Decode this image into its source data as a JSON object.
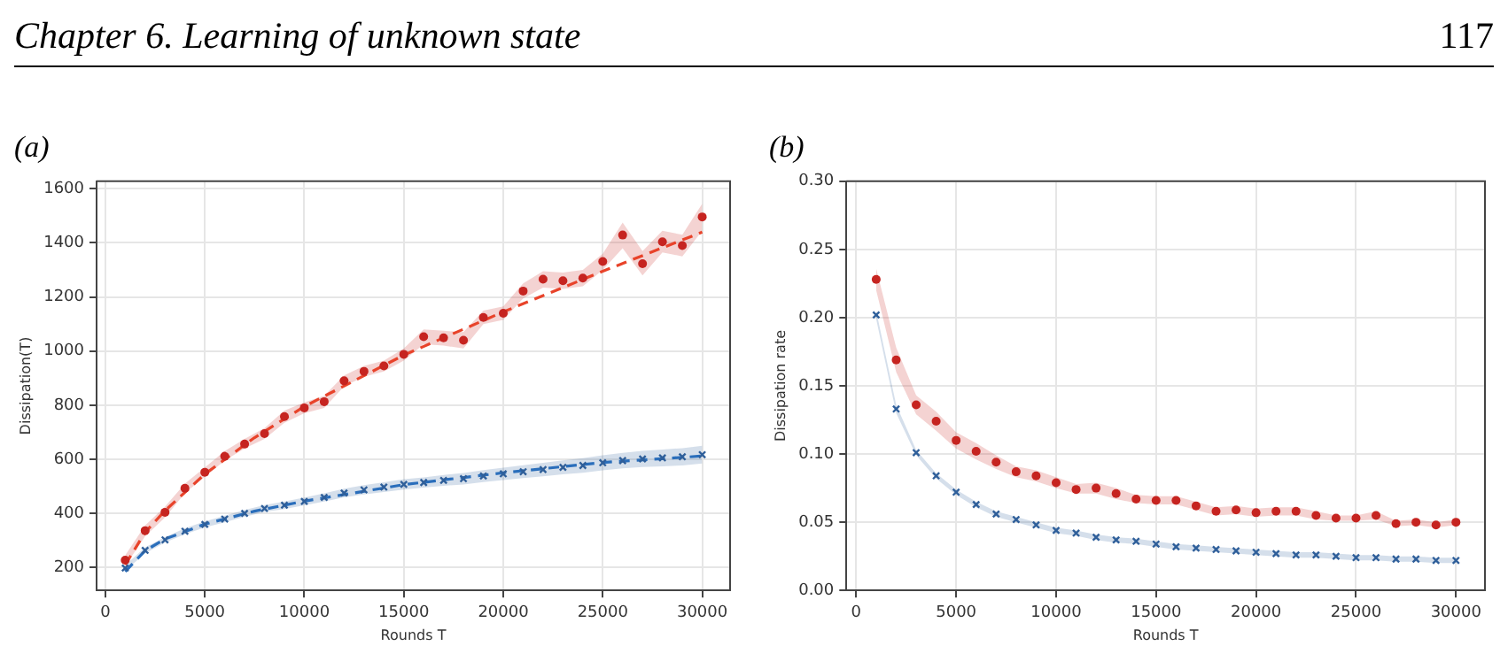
{
  "chart_data": [
    {
      "type": "scatter",
      "title": "(a)",
      "xlabel": "Rounds T",
      "ylabel": "Dissipation(T)",
      "annotations": [
        "Chapter 6. Learning of unknown state",
        "117"
      ],
      "x": [
        1000,
        2000,
        3000,
        4000,
        5000,
        6000,
        7000,
        8000,
        9000,
        10000,
        11000,
        12000,
        13000,
        14000,
        15000,
        16000,
        17000,
        18000,
        19000,
        20000,
        21000,
        22000,
        23000,
        24000,
        25000,
        26000,
        27000,
        28000,
        29000,
        30000
      ],
      "series": [
        {
          "type": "scatter",
          "marker": "circle",
          "color": "#c62420",
          "values": [
            227,
            336,
            404,
            493,
            552,
            611,
            656,
            695,
            758,
            790,
            813,
            890,
            925,
            945,
            988,
            1053,
            1049,
            1040,
            1124,
            1140,
            1222,
            1266,
            1260,
            1270,
            1331,
            1429,
            1323,
            1404,
            1390,
            1496
          ],
          "lower": [
            205,
            315,
            385,
            475,
            535,
            595,
            640,
            675,
            735,
            770,
            790,
            870,
            905,
            925,
            965,
            1025,
            1020,
            1010,
            1100,
            1115,
            1195,
            1235,
            1230,
            1240,
            1300,
            1380,
            1280,
            1365,
            1350,
            1445
          ],
          "upper": [
            245,
            355,
            425,
            510,
            570,
            630,
            675,
            715,
            780,
            810,
            835,
            910,
            945,
            965,
            1010,
            1080,
            1075,
            1070,
            1150,
            1165,
            1250,
            1295,
            1290,
            1300,
            1360,
            1475,
            1370,
            1445,
            1430,
            1545
          ]
        },
        {
          "type": "line",
          "line_style": "dashed",
          "marker": "none",
          "color": "#e8432a",
          "x": [
            1000,
            2000,
            3000,
            5000,
            7500,
            10000,
            15000,
            20000,
            25000,
            30000
          ],
          "values": [
            210,
            330,
            410,
            545,
            680,
            795,
            985,
            1145,
            1295,
            1440
          ]
        },
        {
          "type": "scatter",
          "marker": "cross",
          "color": "#2f5f9a",
          "values": [
            198,
            263,
            302,
            334,
            359,
            379,
            400,
            418,
            430,
            444,
            459,
            475,
            487,
            497,
            507,
            514,
            522,
            528,
            538,
            546,
            554,
            562,
            570,
            577,
            587,
            595,
            601,
            605,
            609,
            617
          ],
          "lower": [
            188,
            252,
            292,
            323,
            348,
            367,
            387,
            405,
            416,
            430,
            444,
            459,
            470,
            479,
            488,
            495,
            502,
            507,
            516,
            523,
            530,
            537,
            544,
            550,
            559,
            566,
            571,
            574,
            577,
            584
          ],
          "upper": [
            208,
            274,
            312,
            345,
            370,
            391,
            413,
            431,
            444,
            458,
            474,
            491,
            504,
            515,
            526,
            533,
            542,
            549,
            560,
            569,
            578,
            587,
            596,
            604,
            615,
            624,
            631,
            636,
            641,
            650
          ]
        },
        {
          "type": "line",
          "line_style": "dashed",
          "marker": "none",
          "color": "#2a6ebb",
          "x": [
            1000,
            2000,
            3000,
            5000,
            7500,
            10000,
            15000,
            20000,
            25000,
            30000
          ],
          "values": [
            185,
            262,
            305,
            360,
            408,
            445,
            506,
            550,
            588,
            612
          ]
        }
      ],
      "xlim": [
        -440,
        31400
      ],
      "xticks": [
        0,
        5000,
        10000,
        15000,
        20000,
        25000,
        30000
      ],
      "ylim": [
        115,
        1628
      ],
      "yticks": [
        200,
        400,
        600,
        800,
        1000,
        1200,
        1400,
        1600
      ],
      "grid": true,
      "legend": false
    },
    {
      "type": "scatter",
      "title": "(b)",
      "xlabel": "Rounds T",
      "ylabel": "Dissipation rate",
      "x": [
        1000,
        2000,
        3000,
        4000,
        5000,
        6000,
        7000,
        8000,
        9000,
        10000,
        11000,
        12000,
        13000,
        14000,
        15000,
        16000,
        17000,
        18000,
        19000,
        20000,
        21000,
        22000,
        23000,
        24000,
        25000,
        26000,
        27000,
        28000,
        29000,
        30000
      ],
      "series": [
        {
          "type": "scatter",
          "marker": "circle",
          "color": "#c62420",
          "values": [
            0.228,
            0.169,
            0.136,
            0.124,
            0.11,
            0.102,
            0.094,
            0.087,
            0.084,
            0.079,
            0.074,
            0.075,
            0.071,
            0.067,
            0.066,
            0.066,
            0.062,
            0.058,
            0.059,
            0.057,
            0.058,
            0.058,
            0.055,
            0.053,
            0.053,
            0.055,
            0.049,
            0.05,
            0.048,
            0.05
          ],
          "lower": [
            0.22,
            0.16,
            0.129,
            0.117,
            0.104,
            0.096,
            0.089,
            0.083,
            0.08,
            0.075,
            0.071,
            0.071,
            0.067,
            0.064,
            0.063,
            0.063,
            0.059,
            0.055,
            0.056,
            0.054,
            0.055,
            0.055,
            0.052,
            0.051,
            0.051,
            0.052,
            0.047,
            0.048,
            0.046,
            0.048
          ],
          "upper": [
            0.236,
            0.178,
            0.143,
            0.131,
            0.116,
            0.108,
            0.099,
            0.091,
            0.088,
            0.083,
            0.078,
            0.079,
            0.075,
            0.07,
            0.069,
            0.069,
            0.065,
            0.061,
            0.062,
            0.06,
            0.061,
            0.061,
            0.058,
            0.055,
            0.055,
            0.058,
            0.051,
            0.052,
            0.05,
            0.052
          ]
        },
        {
          "type": "scatter",
          "marker": "cross",
          "color": "#2f5f9a",
          "values": [
            0.202,
            0.133,
            0.101,
            0.084,
            0.072,
            0.063,
            0.056,
            0.052,
            0.048,
            0.044,
            0.042,
            0.039,
            0.037,
            0.036,
            0.034,
            0.032,
            0.031,
            0.03,
            0.029,
            0.028,
            0.027,
            0.026,
            0.026,
            0.025,
            0.024,
            0.024,
            0.023,
            0.023,
            0.022,
            0.022
          ],
          "lower": [
            0.199,
            0.13,
            0.099,
            0.082,
            0.07,
            0.061,
            0.054,
            0.05,
            0.046,
            0.042,
            0.04,
            0.037,
            0.035,
            0.034,
            0.032,
            0.03,
            0.029,
            0.028,
            0.027,
            0.026,
            0.025,
            0.024,
            0.024,
            0.023,
            0.022,
            0.022,
            0.021,
            0.021,
            0.02,
            0.02
          ],
          "upper": [
            0.205,
            0.136,
            0.103,
            0.086,
            0.074,
            0.065,
            0.058,
            0.054,
            0.05,
            0.046,
            0.044,
            0.041,
            0.039,
            0.038,
            0.036,
            0.034,
            0.033,
            0.032,
            0.031,
            0.03,
            0.029,
            0.028,
            0.028,
            0.027,
            0.026,
            0.026,
            0.025,
            0.025,
            0.024,
            0.024
          ]
        }
      ],
      "xlim": [
        -490,
        31450
      ],
      "xticks": [
        0,
        5000,
        10000,
        15000,
        20000,
        25000,
        30000
      ],
      "ylim": [
        0,
        0.3
      ],
      "yticks": [
        {
          "value": 0,
          "label": "0.00"
        },
        {
          "value": 0.05,
          "label": "0.05"
        },
        {
          "value": 0.1,
          "label": "0.10"
        },
        {
          "value": 0.15,
          "label": "0.15"
        },
        {
          "value": 0.2,
          "label": "0.20"
        },
        {
          "value": 0.25,
          "label": "0.25"
        },
        {
          "value": 0.3,
          "label": "0.30"
        }
      ],
      "grid": true,
      "legend": false
    }
  ]
}
